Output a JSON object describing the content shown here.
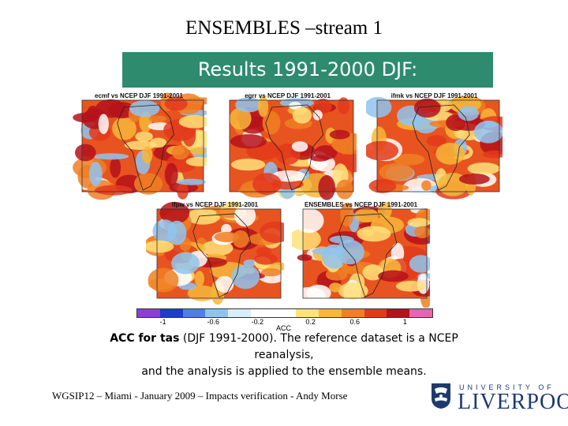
{
  "slide": {
    "title": "ENSEMBLES –stream 1",
    "banner": "Results 1991-2000 DJF:",
    "panels": [
      {
        "title": "ecmf vs NCEP DJF 1991-2001"
      },
      {
        "title": "egrr vs NCEP DJF 1991-2001"
      },
      {
        "title": "ifmk vs NCEP DJF 1991-2001"
      },
      {
        "title": "lfpw vs NCEP DJF 1991-2001"
      },
      {
        "title": "ENSEMBLES vs NCEP DJF 1991-2001"
      }
    ],
    "colorbar": {
      "label": "ACC",
      "ticks": [
        "-1",
        "-0.6",
        "-0.2",
        "0.2",
        "0.6",
        "1"
      ],
      "colors": [
        "#8c3fd6",
        "#1c3ec9",
        "#4f7fe6",
        "#8fc4ef",
        "#d8eef8",
        "#ffffff",
        "#ffffff",
        "#ffe27a",
        "#f7b73a",
        "#f07f25",
        "#e33a1c",
        "#b5121b",
        "#e565b0"
      ]
    },
    "caption": {
      "bold": "ACC for tas",
      "line1_rest": " (DJF 1991-2000). The reference dataset is a NCEP reanalysis,",
      "line2": "and the analysis is applied to the ensemble means."
    },
    "footer": "WGSIP12 – Miami - January 2009 – Impacts verification - Andy Morse",
    "logo": {
      "top": "UNIVERSITY OF",
      "name": "LIVERPOOL"
    }
  }
}
